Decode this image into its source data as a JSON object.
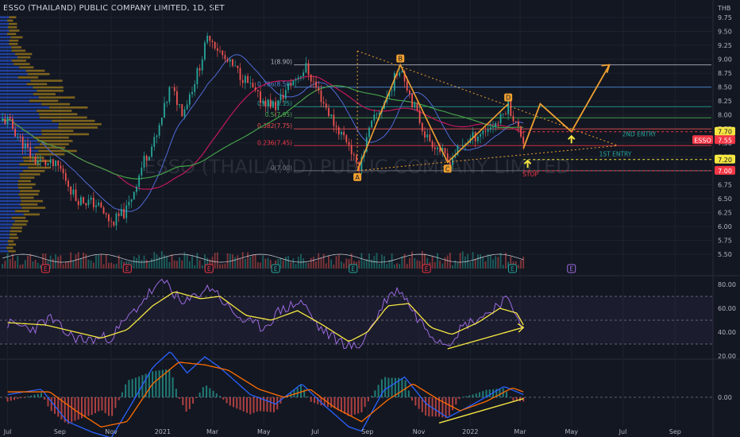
{
  "header": {
    "title": "ESSO (THAILAND) PUBLIC COMPANY LIMITED, 1D, SET",
    "currency": "THB"
  },
  "watermark": "ESSO (THAILAND) PUBLIC COMPANY LIMITED",
  "colors": {
    "background": "#131722",
    "candle_up": "#26a69a",
    "candle_down": "#ef5350",
    "volume_profile_blue": "#2962ff",
    "volume_profile_gold": "#d4a017",
    "pattern_orange": "#f0a030",
    "yellow": "#f5e642",
    "purple": "#9c6ade",
    "macd_blue": "#2962ff",
    "macd_orange": "#ff6d00"
  },
  "chart_data": [
    {
      "type": "candlestick",
      "title": "",
      "x_ticks": [
        "Jul",
        "Sep",
        "Nov",
        "2021",
        "Mar",
        "May",
        "Jul",
        "Sep",
        "Nov",
        "2022",
        "Mar",
        "May",
        "Jul",
        "Sep"
      ],
      "y_ticks": [
        5.5,
        5.75,
        6.0,
        6.25,
        6.5,
        6.75,
        7.0,
        7.25,
        7.5,
        7.75,
        8.0,
        8.25,
        8.5,
        8.75,
        9.0,
        9.25,
        9.5,
        9.75
      ],
      "ylim": [
        5.4,
        9.85
      ],
      "price_path": [
        [
          "2020-07-01",
          7.9
        ],
        [
          "2020-08-01",
          7.2
        ],
        [
          "2020-09-01",
          7.05
        ],
        [
          "2020-09-20",
          6.5
        ],
        [
          "2020-10-15",
          6.4
        ],
        [
          "2020-11-01",
          6.05
        ],
        [
          "2020-11-20",
          6.3
        ],
        [
          "2020-12-10",
          7.2
        ],
        [
          "2020-12-25",
          7.6
        ],
        [
          "2021-01-10",
          8.5
        ],
        [
          "2021-01-25",
          8.05
        ],
        [
          "2021-02-10",
          8.7
        ],
        [
          "2021-02-25",
          9.45
        ],
        [
          "2021-03-15",
          9.0
        ],
        [
          "2021-04-05",
          8.7
        ],
        [
          "2021-04-25",
          8.3
        ],
        [
          "2021-05-15",
          8.15
        ],
        [
          "2021-06-01",
          8.55
        ],
        [
          "2021-06-20",
          8.85
        ],
        [
          "2021-07-05",
          8.4
        ],
        [
          "2021-07-25",
          7.8
        ],
        [
          "2021-08-10",
          7.5
        ],
        [
          "2021-08-20",
          7.0
        ],
        [
          "2021-09-05",
          7.8
        ],
        [
          "2021-09-25",
          8.35
        ],
        [
          "2021-10-10",
          8.9
        ],
        [
          "2021-10-25",
          8.2
        ],
        [
          "2021-11-10",
          7.6
        ],
        [
          "2021-11-25",
          7.4
        ],
        [
          "2021-12-05",
          7.15
        ],
        [
          "2021-12-25",
          7.5
        ],
        [
          "2022-01-15",
          7.7
        ],
        [
          "2022-02-05",
          7.9
        ],
        [
          "2022-02-15",
          8.2
        ],
        [
          "2022-02-25",
          7.8
        ],
        [
          "2022-03-05",
          7.55
        ]
      ],
      "last_price": 7.55,
      "series": [
        {
          "name": "ESSO",
          "type": "candles"
        },
        {
          "name": "",
          "type": "moving_average_red"
        },
        {
          "name": "",
          "type": "moving_average_green"
        },
        {
          "name": "",
          "type": "moving_average_blue"
        }
      ],
      "volume_profile": true,
      "price_labels": [
        {
          "text": "7.70",
          "value": 7.7,
          "color": "#131722",
          "bg": "#f5e642",
          "fg": "#131722"
        },
        {
          "text": "ESSO",
          "value": 7.55,
          "bg": "#f23645",
          "fg": "#ffffff"
        },
        {
          "text": "7.55",
          "value": 7.55,
          "bg": "#f23645",
          "fg": "#ffffff"
        },
        {
          "text": "7.20",
          "value": 7.2,
          "bg": "#f5e642",
          "fg": "#131722"
        },
        {
          "text": "7.00",
          "value": 7.0,
          "bg": "#f23645",
          "fg": "#ffffff"
        }
      ],
      "fibonacci": [
        {
          "label": "1(8.90)",
          "value": 8.9,
          "color": "#b2b5be"
        },
        {
          "label": "0.786(8.50)",
          "value": 8.5,
          "color": "#4f8bd6"
        },
        {
          "label": "0.618(8.15)",
          "value": 8.15,
          "color": "#26a69a"
        },
        {
          "label": "0.5(7.95)",
          "value": 7.95,
          "color": "#4caf50"
        },
        {
          "label": "0.382(7.75)",
          "value": 7.75,
          "color": "#ef5350"
        },
        {
          "label": "0.236(7.45)",
          "value": 7.45,
          "color": "#f23645"
        },
        {
          "label": "0(7.00)",
          "value": 7.0,
          "color": "#787b86"
        }
      ],
      "pattern_points": [
        {
          "label": "A",
          "date": "2021-08-20",
          "value": 7.0
        },
        {
          "label": "B",
          "date": "2021-10-10",
          "value": 8.9
        },
        {
          "label": "C",
          "date": "2021-12-05",
          "value": 7.15
        },
        {
          "label": "D",
          "date": "2022-02-15",
          "value": 8.2
        }
      ],
      "projection": [
        [
          "2022-03-05",
          7.4
        ],
        [
          "2022-03-25",
          8.2
        ],
        [
          "2022-05-01",
          7.7
        ],
        [
          "2022-06-15",
          8.9
        ]
      ],
      "annotations": [
        {
          "text": "2ND ENTRY",
          "color": "#26a69a"
        },
        {
          "text": "1ST ENTRY",
          "color": "#26a69a"
        },
        {
          "text": "STOP",
          "color": "#f23645"
        }
      ],
      "earnings_markers": [
        {
          "date": "2020-08-15",
          "text": "E",
          "kind": "red"
        },
        {
          "date": "2020-11-20",
          "text": "E",
          "kind": "red"
        },
        {
          "date": "2021-02-25",
          "text": "E",
          "kind": "red"
        },
        {
          "date": "2021-05-15",
          "text": "E",
          "kind": "green"
        },
        {
          "date": "2021-08-15",
          "text": "E",
          "kind": "green"
        },
        {
          "date": "2021-11-10",
          "text": "E",
          "kind": "red"
        },
        {
          "date": "2022-02-20",
          "text": "E",
          "kind": "green"
        },
        {
          "date": "2022-05-01",
          "text": "E",
          "kind": "purple"
        }
      ]
    },
    {
      "type": "line",
      "title": "",
      "y_ticks": [
        20.0,
        40.0,
        60.0,
        80.0
      ],
      "ylim": [
        14,
        86
      ],
      "levels": [
        70,
        50,
        30
      ],
      "series": [
        {
          "name": "",
          "color": "#9c6ade",
          "values": [
            [
              "2020-07-01",
              47
            ],
            [
              "2020-08-01",
              43
            ],
            [
              "2020-08-20",
              52
            ],
            [
              "2020-09-10",
              38
            ],
            [
              "2020-10-01",
              33
            ],
            [
              "2020-11-01",
              36
            ],
            [
              "2020-11-25",
              55
            ],
            [
              "2020-12-15",
              72
            ],
            [
              "2021-01-05",
              83
            ],
            [
              "2021-01-25",
              62
            ],
            [
              "2021-02-15",
              74
            ],
            [
              "2021-03-01",
              78
            ],
            [
              "2021-03-20",
              60
            ],
            [
              "2021-04-10",
              48
            ],
            [
              "2021-05-01",
              44
            ],
            [
              "2021-05-20",
              58
            ],
            [
              "2021-06-15",
              66
            ],
            [
              "2021-07-05",
              44
            ],
            [
              "2021-07-25",
              34
            ],
            [
              "2021-08-20",
              26
            ],
            [
              "2021-09-10",
              50
            ],
            [
              "2021-09-25",
              70
            ],
            [
              "2021-10-10",
              76
            ],
            [
              "2021-10-30",
              52
            ],
            [
              "2021-11-20",
              36
            ],
            [
              "2021-12-05",
              31
            ],
            [
              "2021-12-25",
              46
            ],
            [
              "2022-01-20",
              55
            ],
            [
              "2022-02-10",
              68
            ],
            [
              "2022-02-25",
              56
            ],
            [
              "2022-03-05",
              44
            ]
          ]
        },
        {
          "name": "",
          "color": "#f5e642",
          "values": [
            [
              "2020-07-01",
              48
            ],
            [
              "2020-08-15",
              46
            ],
            [
              "2020-09-20",
              40
            ],
            [
              "2020-10-20",
              35
            ],
            [
              "2020-11-20",
              42
            ],
            [
              "2020-12-20",
              62
            ],
            [
              "2021-01-15",
              74
            ],
            [
              "2021-02-15",
              68
            ],
            [
              "2021-03-10",
              70
            ],
            [
              "2021-04-10",
              54
            ],
            [
              "2021-05-10",
              50
            ],
            [
              "2021-06-10",
              58
            ],
            [
              "2021-07-10",
              46
            ],
            [
              "2021-08-10",
              32
            ],
            [
              "2021-09-01",
              40
            ],
            [
              "2021-09-25",
              62
            ],
            [
              "2021-10-20",
              64
            ],
            [
              "2021-11-15",
              44
            ],
            [
              "2021-12-10",
              38
            ],
            [
              "2022-01-10",
              48
            ],
            [
              "2022-02-05",
              60
            ],
            [
              "2022-02-25",
              56
            ],
            [
              "2022-03-05",
              46
            ]
          ]
        }
      ]
    },
    {
      "type": "line",
      "title": "",
      "y_ticks": [
        0.0
      ],
      "series": [
        {
          "name": "",
          "color": "#2962ff",
          "values": [
            [
              "2020-07-01",
              0.02
            ],
            [
              "2020-08-10",
              0.06
            ],
            [
              "2020-09-10",
              -0.18
            ],
            [
              "2020-10-10",
              -0.26
            ],
            [
              "2020-11-01",
              -0.3
            ],
            [
              "2020-11-25",
              -0.05
            ],
            [
              "2020-12-20",
              0.22
            ],
            [
              "2021-01-10",
              0.34
            ],
            [
              "2021-01-30",
              0.18
            ],
            [
              "2021-02-20",
              0.3
            ],
            [
              "2021-03-10",
              0.22
            ],
            [
              "2021-04-15",
              0.02
            ],
            [
              "2021-05-15",
              -0.05
            ],
            [
              "2021-06-15",
              0.1
            ],
            [
              "2021-07-10",
              -0.05
            ],
            [
              "2021-08-10",
              -0.22
            ],
            [
              "2021-08-25",
              -0.25
            ],
            [
              "2021-09-20",
              0.05
            ],
            [
              "2021-10-15",
              0.15
            ],
            [
              "2021-11-10",
              -0.05
            ],
            [
              "2021-12-05",
              -0.15
            ],
            [
              "2022-01-05",
              -0.05
            ],
            [
              "2022-02-10",
              0.08
            ],
            [
              "2022-03-05",
              0.02
            ]
          ]
        },
        {
          "name": "",
          "color": "#ff6d00",
          "values": [
            [
              "2020-07-01",
              0.04
            ],
            [
              "2020-08-20",
              0.04
            ],
            [
              "2020-09-20",
              -0.1
            ],
            [
              "2020-10-20",
              -0.22
            ],
            [
              "2020-11-20",
              -0.18
            ],
            [
              "2020-12-20",
              0.1
            ],
            [
              "2021-01-20",
              0.26
            ],
            [
              "2021-02-20",
              0.24
            ],
            [
              "2021-03-20",
              0.2
            ],
            [
              "2021-04-25",
              0.06
            ],
            [
              "2021-05-25",
              0.0
            ],
            [
              "2021-06-25",
              0.06
            ],
            [
              "2021-07-25",
              -0.08
            ],
            [
              "2021-08-25",
              -0.18
            ],
            [
              "2021-09-25",
              -0.02
            ],
            [
              "2021-10-25",
              0.1
            ],
            [
              "2021-11-25",
              -0.02
            ],
            [
              "2021-12-20",
              -0.1
            ],
            [
              "2022-01-20",
              -0.03
            ],
            [
              "2022-02-20",
              0.07
            ],
            [
              "2022-03-05",
              0.04
            ]
          ]
        }
      ]
    }
  ]
}
